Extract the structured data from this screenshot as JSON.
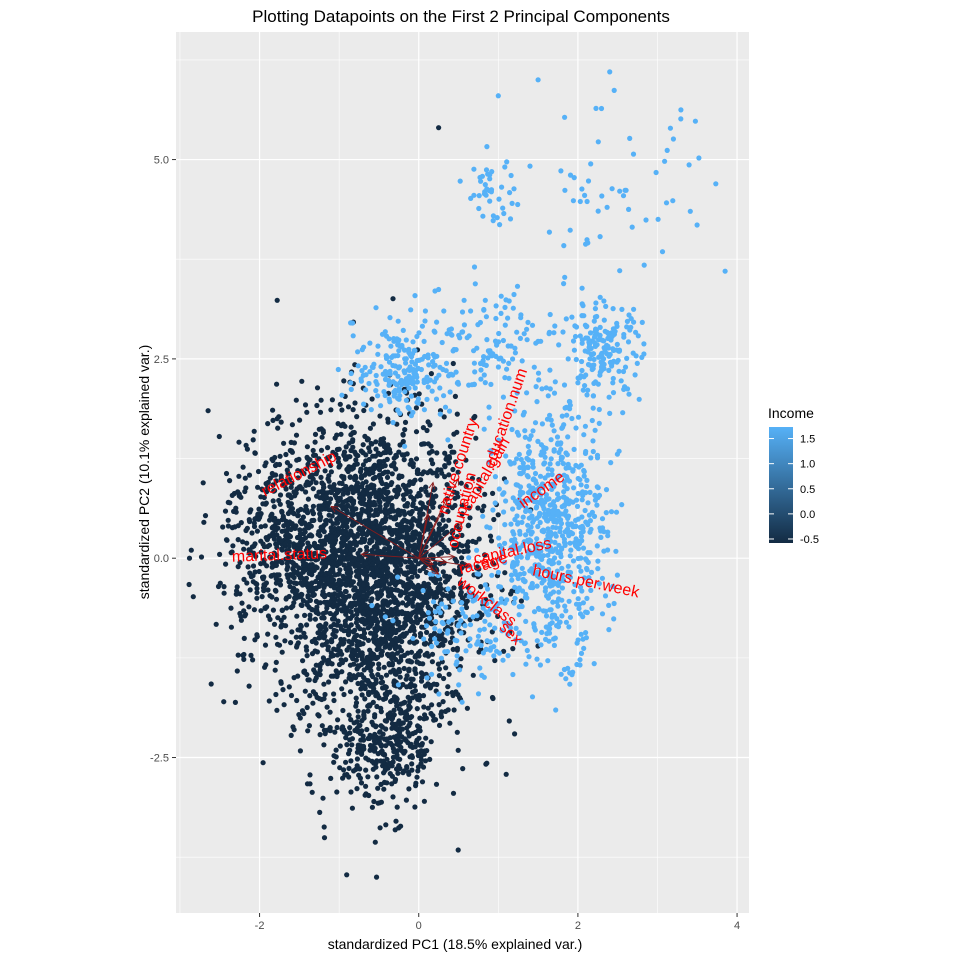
{
  "chart_data": {
    "type": "scatter",
    "title": "Plotting Datapoints on the First 2 Principal Components",
    "xlabel": "standardized PC1 (18.5% explained var.)",
    "ylabel": "standardized PC2 (10.1% explained var.)",
    "xlim": [
      -3.05,
      4.15
    ],
    "ylim": [
      -4.45,
      6.6
    ],
    "x_ticks": [
      -2,
      0,
      2,
      4
    ],
    "x_tick_labels": [
      "-2",
      "0",
      "2",
      "4"
    ],
    "y_ticks": [
      -2.5,
      0,
      2.5,
      5
    ],
    "y_tick_labels": [
      "-2.5",
      "0.0",
      "2.5",
      "5.0"
    ],
    "grid": true,
    "panel_background": "#EBEBEB",
    "grid_color": "#FFFFFF",
    "legend": {
      "title": "Income",
      "position": "right",
      "breaks": [
        1.5,
        1.0,
        0.5,
        0.0,
        -0.5
      ],
      "labels": [
        "1.5",
        "1.0",
        "0.5",
        "0.0",
        "-0.5"
      ],
      "range": [
        -0.58,
        1.73
      ],
      "low_color": "#132B43",
      "high_color": "#56B1F7"
    },
    "point_clusters": [
      {
        "income": -0.58,
        "center": [
          -0.55,
          -0.15
        ],
        "spread": [
          0.62,
          0.95
        ],
        "count": 2600
      },
      {
        "income": -0.58,
        "center": [
          -1.6,
          0.2
        ],
        "spread": [
          0.45,
          0.6
        ],
        "count": 500
      },
      {
        "income": -0.58,
        "center": [
          -0.4,
          -2.3
        ],
        "spread": [
          0.35,
          0.45
        ],
        "count": 350
      },
      {
        "income": 1.73,
        "center": [
          1.65,
          0.3
        ],
        "spread": [
          0.35,
          0.75
        ],
        "count": 700
      },
      {
        "income": 1.73,
        "center": [
          2.3,
          2.6
        ],
        "spread": [
          0.25,
          0.3
        ],
        "count": 180
      },
      {
        "income": 1.73,
        "center": [
          -0.2,
          2.35
        ],
        "spread": [
          0.3,
          0.28
        ],
        "count": 180
      },
      {
        "income": 1.73,
        "center": [
          0.8,
          2.6
        ],
        "spread": [
          0.55,
          0.4
        ],
        "count": 160
      },
      {
        "income": 1.73,
        "center": [
          2.5,
          4.5
        ],
        "spread": [
          0.6,
          0.55
        ],
        "count": 60
      },
      {
        "income": 1.73,
        "center": [
          0.9,
          4.6
        ],
        "spread": [
          0.15,
          0.2
        ],
        "count": 40
      },
      {
        "income": 1.73,
        "center": [
          0.6,
          -0.9
        ],
        "spread": [
          0.4,
          0.4
        ],
        "count": 120
      }
    ],
    "outlier_points": [
      {
        "x": 1.5,
        "y": 6.0,
        "income": 1.73
      },
      {
        "x": 1.0,
        "y": 5.8,
        "income": 1.73
      },
      {
        "x": 2.4,
        "y": 6.1,
        "income": 1.73
      },
      {
        "x": 3.85,
        "y": 3.6,
        "income": 1.73
      },
      {
        "x": 0.25,
        "y": 5.4,
        "income": -0.58
      },
      {
        "x": -0.53,
        "y": -4.0,
        "income": -0.58
      },
      {
        "x": -2.45,
        "y": -1.8,
        "income": -0.58
      },
      {
        "x": -2.7,
        "y": 0.45,
        "income": -0.58
      }
    ],
    "loadings": [
      {
        "name": "relationship",
        "x": -1.1,
        "y": 0.65
      },
      {
        "name": "marital.status",
        "x": -0.72,
        "y": 0.05
      },
      {
        "name": "native.country",
        "x": 0.18,
        "y": 0.95
      },
      {
        "name": "education.num",
        "x": 0.5,
        "y": 1.0
      },
      {
        "name": "capital.gain",
        "x": 0.35,
        "y": 0.75
      },
      {
        "name": "occupation",
        "x": 0.12,
        "y": 0.55
      },
      {
        "name": "income",
        "x": 0.55,
        "y": 0.45
      },
      {
        "name": "capital.loss",
        "x": 0.45,
        "y": 0.02
      },
      {
        "name": "age",
        "x": 0.35,
        "y": -0.05
      },
      {
        "name": "race",
        "x": 0.18,
        "y": -0.08
      },
      {
        "name": "hours.per.week",
        "x": 0.65,
        "y": -0.1
      },
      {
        "name": "workclass",
        "x": 0.25,
        "y": -0.2
      },
      {
        "name": "sex",
        "x": 0.18,
        "y": -0.15
      }
    ],
    "loading_labels": [
      {
        "name": "relationship",
        "x": -1.5,
        "y": 1.05,
        "angle": -27
      },
      {
        "name": "marital.status",
        "x": -1.75,
        "y": 0.03,
        "angle": -2
      },
      {
        "name": "native.country",
        "x": 0.5,
        "y": 1.15,
        "angle": -72
      },
      {
        "name": "education.num",
        "x": 1.1,
        "y": 1.75,
        "angle": -71
      },
      {
        "name": "capital.gain",
        "x": 0.85,
        "y": 1.05,
        "angle": -60
      },
      {
        "name": "occupation",
        "x": 0.55,
        "y": 0.6,
        "angle": -76
      },
      {
        "name": "income",
        "x": 1.55,
        "y": 0.85,
        "angle": -35
      },
      {
        "name": "capital.loss",
        "x": 1.18,
        "y": 0.08,
        "angle": -12
      },
      {
        "name": "age",
        "x": 0.95,
        "y": -0.05,
        "angle": -20
      },
      {
        "name": "race",
        "x": 0.7,
        "y": -0.1,
        "angle": -15
      },
      {
        "name": "hours.per.week",
        "x": 2.1,
        "y": -0.3,
        "angle": 12
      },
      {
        "name": "workclass",
        "x": 0.85,
        "y": -0.55,
        "angle": 38
      },
      {
        "name": "sex",
        "x": 1.15,
        "y": -0.95,
        "angle": 45
      }
    ],
    "loading_color": "#8B1A1A",
    "loading_label_color": "#FF0000"
  }
}
